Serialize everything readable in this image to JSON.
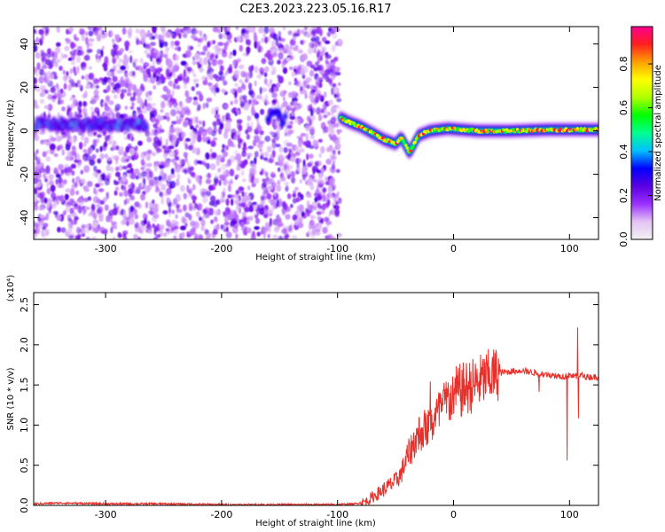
{
  "title": "C2E3.2023.223.05.16.R17",
  "chart_data": [
    {
      "type": "heatmap",
      "xlabel": "Height of straight line (km)",
      "ylabel": "Frequency (Hz)",
      "xlim": [
        -362,
        125
      ],
      "ylim": [
        -50,
        48
      ],
      "x_ticks": [
        -300,
        -200,
        -100,
        0,
        100
      ],
      "y_ticks": [
        -40,
        -20,
        0,
        20,
        40
      ],
      "colorbar": {
        "label": "Normalized spectral amplitude",
        "range": [
          0,
          0.97
        ],
        "ticks": [
          "0.0",
          "0.2",
          "0.4",
          "0.6",
          "0.8"
        ],
        "colormap": [
          "#f2f2f2",
          "#e4c4f4",
          "#9b30ff",
          "#5a00e0",
          "#0000ff",
          "#00c0ff",
          "#00ff90",
          "#00ff00",
          "#b0ff00",
          "#ffff00",
          "#ffa000",
          "#ff2020",
          "#ff0090"
        ]
      },
      "features": [
        {
          "name": "noise-region",
          "x_range": [
            -362,
            -98
          ],
          "description": "scattered low amplitude speckle across all frequencies"
        },
        {
          "name": "band-left",
          "x_range": [
            -360,
            -265
          ],
          "frequency": 3,
          "amplitude": 0.35
        },
        {
          "name": "blob",
          "x_range": [
            -160,
            -145
          ],
          "frequency": 6,
          "amplitude": 0.35
        },
        {
          "name": "band-right",
          "points": [
            [
              -97,
              6
            ],
            [
              -90,
              4
            ],
            [
              -80,
              2
            ],
            [
              -70,
              -1
            ],
            [
              -60,
              -4
            ],
            [
              -50,
              -6
            ],
            [
              -45,
              -3
            ],
            [
              -38,
              -10
            ],
            [
              -30,
              -2
            ],
            [
              -20,
              0
            ],
            [
              -5,
              1
            ],
            [
              20,
              0
            ],
            [
              50,
              0
            ],
            [
              80,
              0.5
            ],
            [
              110,
              0.5
            ],
            [
              125,
              0.5
            ]
          ],
          "amplitude": 0.8
        }
      ]
    },
    {
      "type": "line",
      "xlabel": "Height of straight line (km)",
      "ylabel": "SNR (10 * v/v)",
      "y_scale_label": "(x10⁴)",
      "xlim": [
        -362,
        125
      ],
      "ylim": [
        0,
        2.65
      ],
      "x_ticks": [
        -300,
        -200,
        -100,
        0,
        100
      ],
      "y_ticks": [
        "0.0",
        "0.5",
        "1.0",
        "1.5",
        "2.0",
        "2.5"
      ],
      "color": "#e8302a",
      "series": [
        {
          "x": [
            -362,
            -340,
            -300,
            -250,
            -200,
            -150,
            -100,
            -85,
            -75,
            -70,
            -60,
            -50,
            -45,
            -40,
            -35,
            -30,
            -25,
            -20,
            -15,
            -10,
            -5,
            0,
            10,
            20,
            30,
            40,
            50,
            60,
            70,
            80,
            90,
            95,
            100,
            105,
            110,
            115,
            125
          ],
          "values": [
            0.02,
            0.03,
            0.02,
            0.02,
            0.01,
            0.01,
            0.01,
            0.02,
            0.05,
            0.1,
            0.2,
            0.3,
            0.4,
            0.6,
            0.75,
            0.9,
            0.95,
            1.0,
            1.1,
            1.2,
            1.3,
            1.38,
            1.45,
            1.52,
            1.6,
            1.65,
            1.67,
            1.68,
            1.65,
            1.63,
            1.62,
            1.6,
            1.62,
            1.6,
            1.62,
            1.6,
            1.6
          ]
        }
      ]
    }
  ]
}
